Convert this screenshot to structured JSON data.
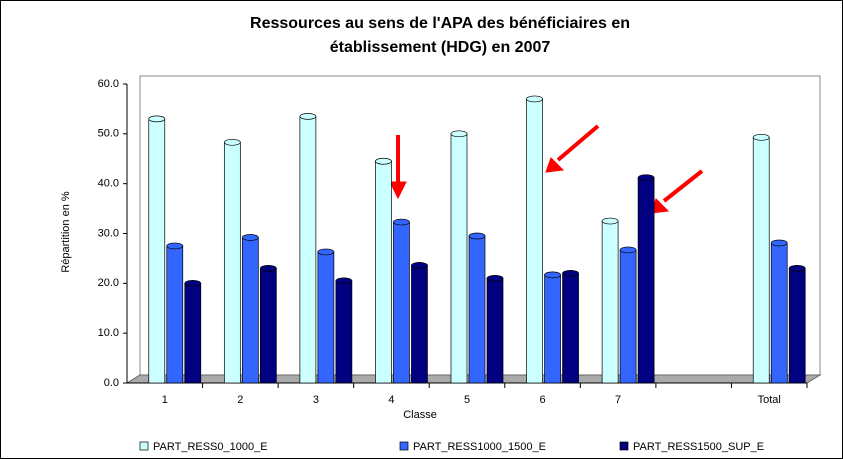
{
  "chart_data": {
    "type": "bar3d",
    "title": [
      "Ressources au sens de l'APA des bénéficiaires en",
      "établissement (HDG) en 2007"
    ],
    "x_label": "Classe",
    "y_label": "Répartition en %",
    "categories": [
      "1",
      "2",
      "3",
      "4",
      "5",
      "6",
      "7",
      null,
      "Total"
    ],
    "series": [
      {
        "name": "PART_RESS0_1000_E",
        "color": "#ccffff",
        "values": [
          53.0,
          48.3,
          53.5,
          44.5,
          50.0,
          57.0,
          32.5,
          null,
          49.3
        ]
      },
      {
        "name": "PART_RESS1000_1500_E",
        "color": "#3366ff",
        "values": [
          27.5,
          29.2,
          26.3,
          32.3,
          29.5,
          21.7,
          26.7,
          null,
          28.1
        ]
      },
      {
        "name": "PART_RESS1500_SUP_E",
        "color": "#000080",
        "values": [
          20.0,
          23.0,
          20.5,
          23.6,
          21.0,
          22.0,
          41.2,
          null,
          23.0
        ]
      }
    ],
    "ylim": [
      0,
      60
    ],
    "yticks": [
      {
        "value": 0,
        "label": "0.0"
      },
      {
        "value": 10,
        "label": "10.0"
      },
      {
        "value": 20,
        "label": "20.0"
      },
      {
        "value": 30,
        "label": "30.0"
      },
      {
        "value": 40,
        "label": "40.0"
      },
      {
        "value": 50,
        "label": "50.0"
      },
      {
        "value": 60,
        "label": "60.0"
      }
    ],
    "grid": false,
    "legend": "bottom"
  }
}
